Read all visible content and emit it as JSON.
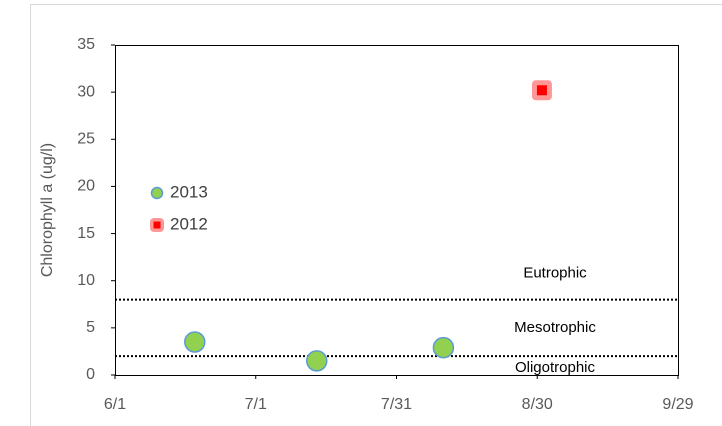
{
  "chart_data": {
    "type": "scatter",
    "y_label": "Chlorophyll a (ug/l)",
    "series": [
      {
        "name": "2013",
        "color": "#92d050",
        "x": [
          "6/18",
          "7/14",
          "8/10"
        ],
        "values": [
          3.5,
          1.5,
          2.9
        ]
      },
      {
        "name": "2012",
        "color": "#ff0000",
        "x": [
          "8/31"
        ],
        "values": [
          30.2
        ]
      }
    ],
    "xlim": [
      "6/1",
      "9/29"
    ],
    "xticks": [
      "6/1",
      "7/1",
      "7/31",
      "8/30",
      "9/29"
    ],
    "ylim": [
      0,
      35
    ],
    "yticks": [
      0,
      5,
      10,
      15,
      20,
      25,
      30,
      35
    ],
    "hlines": [
      8,
      2
    ],
    "annotations": [
      "Eutrophic",
      "Mesotrophic",
      "Oligotrophic"
    ]
  }
}
